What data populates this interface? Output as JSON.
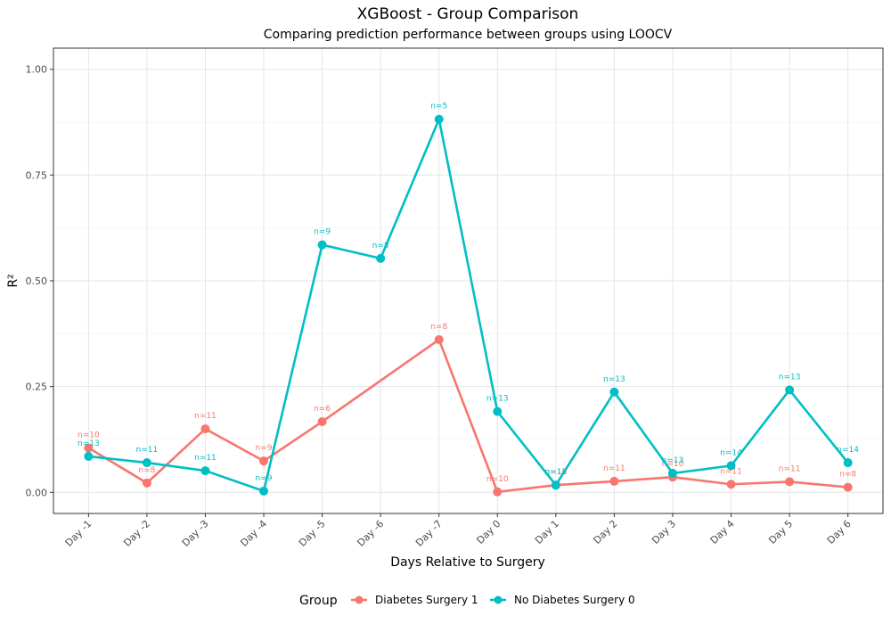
{
  "chart_data": {
    "type": "line",
    "title": "XGBoost - Group Comparison",
    "subtitle": "Comparing prediction performance between groups using LOOCV",
    "xlabel": "Days Relative to Surgery",
    "ylabel": "R²",
    "ylim": [
      -0.05,
      1.05
    ],
    "yticks": [
      "0.00",
      "0.25",
      "0.50",
      "0.75",
      "1.00"
    ],
    "categories": [
      "Day -1",
      "Day -2",
      "Day -3",
      "Day -4",
      "Day -5",
      "Day -6",
      "Day -7",
      "Day 0",
      "Day 1",
      "Day 2",
      "Day 3",
      "Day 4",
      "Day 5",
      "Day 6"
    ],
    "grid": true,
    "legend": {
      "title": "Group",
      "position": "bottom"
    },
    "series": [
      {
        "name": "Diabetes Surgery 1",
        "color": "#F8766D",
        "values": [
          0.105,
          0.022,
          0.15,
          0.074,
          0.167,
          null,
          0.361,
          0.001,
          0.017,
          0.026,
          0.036,
          0.019,
          0.025,
          0.012
        ],
        "labels": [
          "n=10",
          "n=8",
          "n=11",
          "n=9",
          "n=6",
          null,
          "n=8",
          "n=10",
          "n=10",
          "n=11",
          "n=10",
          "n=11",
          "n=11",
          "n=8"
        ]
      },
      {
        "name": "No Diabetes Surgery 0",
        "color": "#00BFC4",
        "values": [
          0.085,
          0.07,
          0.051,
          0.003,
          0.585,
          0.553,
          0.882,
          0.191,
          0.017,
          0.237,
          0.045,
          0.063,
          0.242,
          0.07
        ],
        "labels": [
          "n=13",
          "n=11",
          "n=11",
          "n=9",
          "n=9",
          "n=8",
          "n=5",
          "n=13",
          "n=12",
          "n=13",
          "n=13",
          "n=14",
          "n=13",
          "n=14"
        ]
      }
    ]
  }
}
